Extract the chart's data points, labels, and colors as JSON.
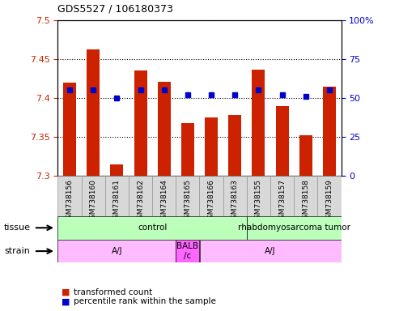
{
  "title": "GDS5527 / 106180373",
  "samples": [
    "GSM738156",
    "GSM738160",
    "GSM738161",
    "GSM738162",
    "GSM738164",
    "GSM738165",
    "GSM738166",
    "GSM738163",
    "GSM738155",
    "GSM738157",
    "GSM738158",
    "GSM738159"
  ],
  "red_values": [
    7.42,
    7.462,
    7.315,
    7.435,
    7.421,
    7.368,
    7.375,
    7.378,
    7.436,
    7.39,
    7.352,
    7.415
  ],
  "blue_values": [
    55,
    55,
    50,
    55,
    55,
    52,
    52,
    52,
    55,
    52,
    51,
    55
  ],
  "ylim": [
    7.3,
    7.5
  ],
  "y2lim": [
    0,
    100
  ],
  "yticks": [
    7.3,
    7.35,
    7.4,
    7.45,
    7.5
  ],
  "y2ticks": [
    0,
    25,
    50,
    75,
    100
  ],
  "bar_color": "#cc2200",
  "dot_color": "#0000cc",
  "baseline": 7.3,
  "bg_color": "#ffffff",
  "tick_label_color_left": "#cc2200",
  "tick_label_color_right": "#0000cc",
  "tissue_groups": [
    {
      "label": "control",
      "start": 0,
      "end": 8,
      "color": "#bbffbb"
    },
    {
      "label": "rhabdomyosarcoma tumor",
      "start": 8,
      "end": 12,
      "color": "#bbffbb"
    }
  ],
  "strain_groups": [
    {
      "label": "A/J",
      "start": 0,
      "end": 5,
      "color": "#ffbbff"
    },
    {
      "label": "BALB\n/c",
      "start": 5,
      "end": 6,
      "color": "#ff66ff"
    },
    {
      "label": "A/J",
      "start": 6,
      "end": 12,
      "color": "#ffbbff"
    }
  ]
}
